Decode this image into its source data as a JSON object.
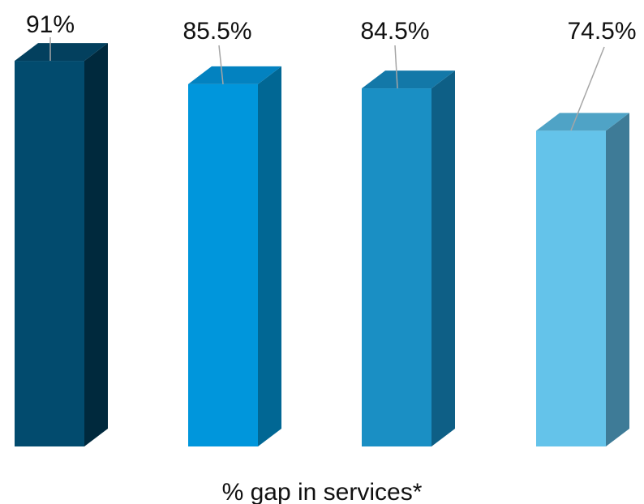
{
  "chart_data": {
    "type": "bar",
    "categories": [
      "",
      "",
      "",
      ""
    ],
    "values": [
      91,
      85.5,
      84.5,
      74.5
    ],
    "data_labels": [
      "91%",
      "85.5%",
      "84.5%",
      "74.5%"
    ],
    "xlabel": "% gap in services*",
    "ylabel": "",
    "ylim": [
      0,
      100
    ],
    "grid": false,
    "legend": "none",
    "bar_style": "3d",
    "colors": {
      "front": [
        "#024b6e",
        "#0096dc",
        "#1a8fc4",
        "#64c3ea"
      ],
      "top": [
        "#03405e",
        "#0382c0",
        "#1378a8",
        "#4fa3c6"
      ],
      "side": [
        "#00293d",
        "#016794",
        "#0e5f86",
        "#3e7b97"
      ]
    },
    "leader_line_color": "#a6a6a6"
  }
}
